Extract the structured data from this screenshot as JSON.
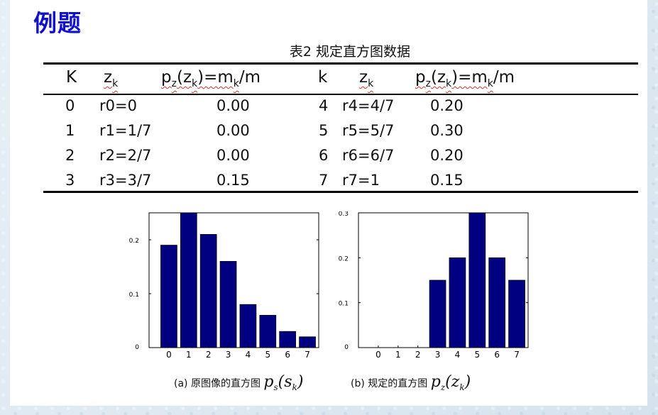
{
  "slide": {
    "title": "例题",
    "table_caption": "表2  规定直方图数据"
  },
  "table": {
    "headers": [
      "K",
      "z",
      "k",
      "p",
      "z",
      "(z",
      "k",
      ")=m",
      "k",
      "/m"
    ],
    "left_rows": [
      {
        "k": "0",
        "z": "r0=0",
        "p": "0.00"
      },
      {
        "k": "1",
        "z": "r1=1/7",
        "p": "0.00"
      },
      {
        "k": "2",
        "z": "r2=2/7",
        "p": "0.00"
      },
      {
        "k": "3",
        "z": "r3=3/7",
        "p": "0.15"
      }
    ],
    "right_rows": [
      {
        "k": "4",
        "z": "r4=4/7",
        "p": "0.20"
      },
      {
        "k": "5",
        "z": "r5=5/7",
        "p": "0.30"
      },
      {
        "k": "6",
        "z": "r6=6/7",
        "p": "0.20"
      },
      {
        "k": "7",
        "z": "r7=1",
        "p": "0.15"
      }
    ],
    "header_right_k": "k"
  },
  "chart_data": [
    {
      "type": "bar",
      "categories": [
        "0",
        "1",
        "2",
        "3",
        "4",
        "5",
        "6",
        "7"
      ],
      "values": [
        0.19,
        0.25,
        0.21,
        0.16,
        0.08,
        0.06,
        0.03,
        0.02
      ],
      "yticks": [
        "0",
        "0.1",
        "0.2"
      ],
      "ylim": [
        0,
        0.25
      ],
      "color": "#000080"
    },
    {
      "type": "bar",
      "categories": [
        "0",
        "1",
        "2",
        "3",
        "4",
        "5",
        "6",
        "7"
      ],
      "values": [
        0,
        0,
        0,
        0.15,
        0.2,
        0.3,
        0.2,
        0.15
      ],
      "yticks": [
        "0",
        "0.1",
        "0.2",
        "0.3"
      ],
      "ylim": [
        0,
        0.3
      ],
      "color": "#000080"
    }
  ],
  "captions": {
    "a_text": "(a)  原图像的直方图",
    "a_p": "p",
    "a_sub": "s",
    "a_arg": "(s",
    "a_argsub": "k",
    "a_close": ")",
    "b_text": "(b) 规定的直方图",
    "b_p": "p",
    "b_sub": "z",
    "b_arg": "(z",
    "b_argsub": "k",
    "b_close": ")"
  }
}
